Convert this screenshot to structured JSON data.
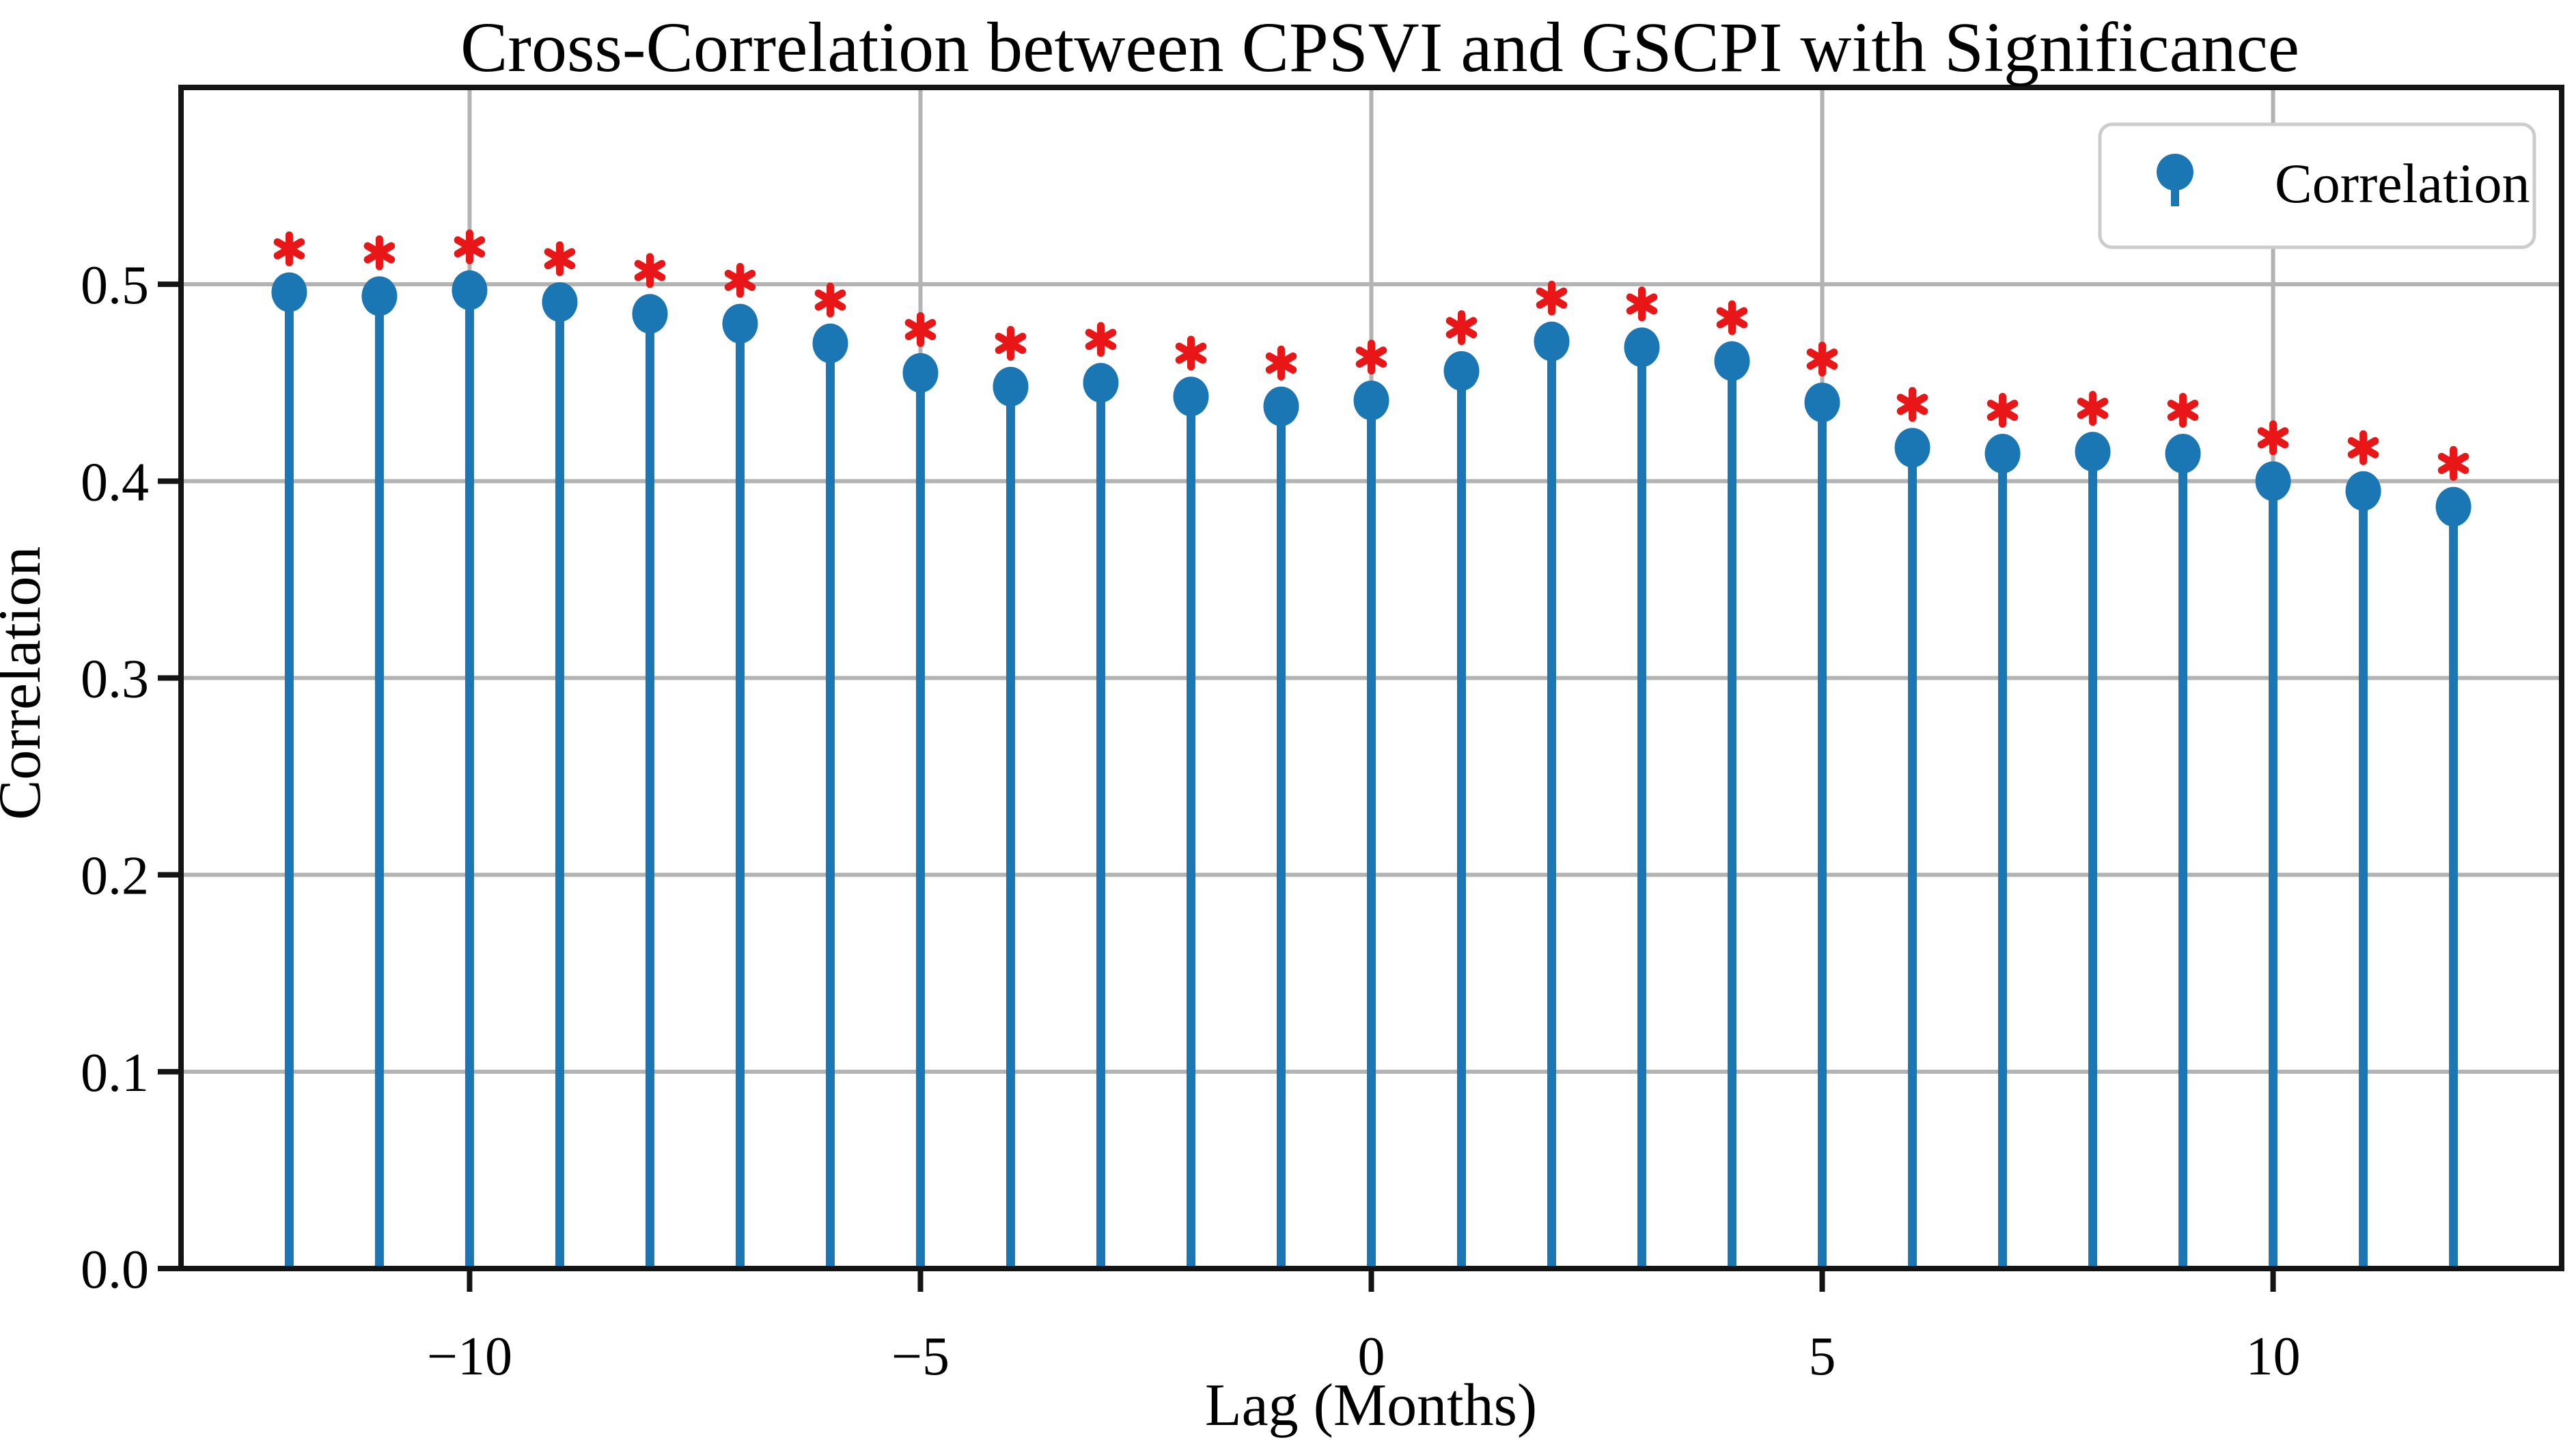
{
  "figure": {
    "title": "Cross-Correlation between CPSVI and GSCPI with Significance",
    "xlabel": "Lag (Months)",
    "ylabel": "Correlation",
    "legend_label": "Correlation"
  },
  "chart_data": {
    "type": "stem",
    "title": "Cross-Correlation between CPSVI and GSCPI with Significance",
    "xlabel": "Lag (Months)",
    "ylabel": "Correlation",
    "x": [
      -12,
      -11,
      -10,
      -9,
      -8,
      -7,
      -6,
      -5,
      -4,
      -3,
      -2,
      -1,
      0,
      1,
      2,
      3,
      4,
      5,
      6,
      7,
      8,
      9,
      10,
      11,
      12
    ],
    "series": [
      {
        "name": "Correlation",
        "values": [
          0.496,
          0.494,
          0.497,
          0.491,
          0.485,
          0.48,
          0.47,
          0.455,
          0.448,
          0.45,
          0.443,
          0.438,
          0.441,
          0.456,
          0.471,
          0.468,
          0.461,
          0.44,
          0.417,
          0.414,
          0.415,
          0.414,
          0.4,
          0.395,
          0.387
        ]
      }
    ],
    "significant": [
      true,
      true,
      true,
      true,
      true,
      true,
      true,
      true,
      true,
      true,
      true,
      true,
      true,
      true,
      true,
      true,
      true,
      true,
      true,
      true,
      true,
      true,
      true,
      true,
      true
    ],
    "significance_marker": "*",
    "significance_offset": 0.022,
    "xlim": [
      -13.2,
      13.2
    ],
    "ylim": [
      0,
      0.6
    ],
    "xticks": [
      -10,
      -5,
      0,
      5,
      10
    ],
    "xtick_labels": [
      "−10",
      "−5",
      "0",
      "5",
      "10"
    ],
    "yticks": [
      0,
      0.1,
      0.2,
      0.3,
      0.4,
      0.5
    ],
    "ytick_labels": [
      "0.0",
      "0.1",
      "0.2",
      "0.3",
      "0.4",
      "0.5"
    ],
    "grid": true,
    "legend_position": "upper right",
    "colors": {
      "stem": "#1b76b4",
      "marker": "#1b76b4",
      "significance": "#e81616",
      "grid": "#b3b3b3",
      "spine": "#141414",
      "legend_border": "#cccccc"
    }
  }
}
